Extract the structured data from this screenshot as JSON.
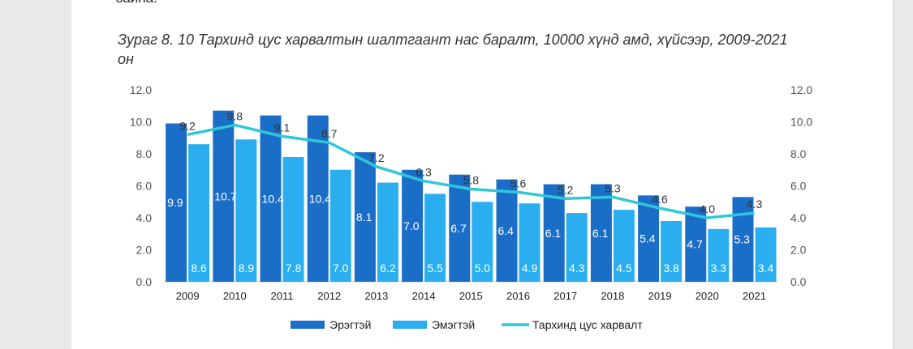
{
  "document": {
    "top_fragment": "байна.",
    "caption": "Зураг 8. 10 Тархинд цус харвалтын шалтгаант нас баралт, 10000 хүнд амд, хүйсээр, 2009-2021 он"
  },
  "chart_data": {
    "type": "bar",
    "title": "Зураг 8. 10 Тархинд цус харвалтын шалтгаант нас баралт, 10000 хүнд амд, хүйсээр, 2009-2021 он",
    "categories": [
      "2009",
      "2010",
      "2011",
      "2012",
      "2013",
      "2014",
      "2015",
      "2016",
      "2017",
      "2018",
      "2019",
      "2020",
      "2021"
    ],
    "series": [
      {
        "name": "Эрэгтэй",
        "kind": "bar",
        "color": "#1b6ec8",
        "values": [
          9.9,
          10.7,
          10.4,
          10.4,
          8.1,
          7.0,
          6.7,
          6.4,
          6.1,
          6.1,
          5.4,
          4.7,
          5.3
        ],
        "labels": [
          "9.9",
          "10.7",
          "10.4",
          "10.4",
          "8.1",
          "7.0",
          "6.7",
          "6.4",
          "6.1",
          "6.1",
          "5.4",
          "4.7",
          "5.3"
        ]
      },
      {
        "name": "Эмэгтэй",
        "kind": "bar",
        "color": "#2aaef0",
        "values": [
          8.6,
          8.9,
          7.8,
          7.0,
          6.2,
          5.5,
          5.0,
          4.9,
          4.3,
          4.5,
          3.8,
          3.3,
          3.4
        ],
        "labels": [
          "8.6",
          "8.9",
          "7.8",
          "7.0",
          "6.2",
          "5.5",
          "5.0",
          "4.9",
          "4.3",
          "4.5",
          "3.8",
          "3.3",
          "3.4"
        ]
      },
      {
        "name": "Тархинд цус харвалт",
        "kind": "line",
        "color": "#2fc8d8",
        "values": [
          9.2,
          9.8,
          9.1,
          8.7,
          7.2,
          6.3,
          5.8,
          5.6,
          5.2,
          5.3,
          4.6,
          4.0,
          4.3
        ],
        "labels": [
          "9.2",
          "9.8",
          "9.1",
          "8.7",
          "7.2",
          "6.3",
          "5.8",
          "5.6",
          "5.2",
          "5.3",
          "4.6",
          "4.0",
          "4.3"
        ]
      }
    ],
    "y_ticks": [
      "0.0",
      "2.0",
      "4.0",
      "6.0",
      "8.0",
      "10.0",
      "12.0"
    ],
    "ylim": [
      0,
      12
    ],
    "y2_ticks": [
      "0.0",
      "2.0",
      "4.0",
      "6.0",
      "8.0",
      "10.0",
      "12.0"
    ],
    "y2lim": [
      0,
      12
    ],
    "grid": false,
    "legend_position": "bottom",
    "xlabel": "",
    "ylabel": ""
  }
}
